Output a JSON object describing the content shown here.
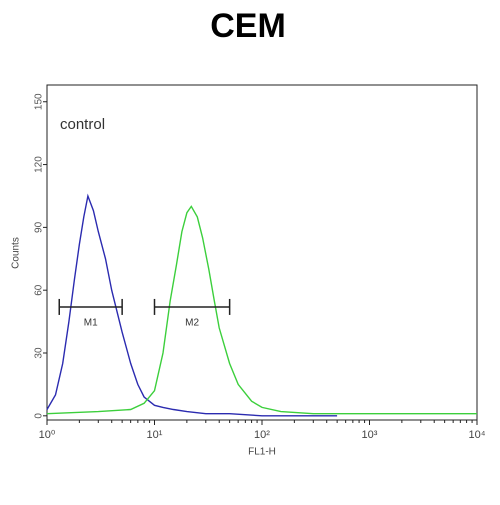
{
  "chart_data": {
    "type": "line",
    "title": "CEM",
    "annotation": "control",
    "x_label": "FL1-H",
    "y_label": "Counts",
    "xscale": "log",
    "xlim": [
      1,
      10000
    ],
    "xticks": [
      {
        "value": 1,
        "label": "10⁰"
      },
      {
        "value": 10,
        "label": "10¹"
      },
      {
        "value": 100,
        "label": "10²"
      },
      {
        "value": 1000,
        "label": "10³"
      },
      {
        "value": 10000,
        "label": "10⁴"
      }
    ],
    "ylim": [
      -2,
      158
    ],
    "yticks": [
      0,
      30,
      60,
      90,
      120,
      150
    ],
    "series": [
      {
        "color": "#2b2bb0",
        "x": [
          1,
          1.2,
          1.4,
          1.6,
          1.8,
          2.0,
          2.2,
          2.4,
          2.7,
          3.0,
          3.5,
          4,
          5,
          6,
          7,
          8,
          10,
          12,
          15,
          20,
          30,
          50,
          100,
          200,
          500
        ],
        "values": [
          3,
          10,
          25,
          45,
          65,
          82,
          95,
          105,
          98,
          88,
          75,
          60,
          40,
          25,
          15,
          9,
          5,
          4,
          3,
          2,
          1,
          1,
          0,
          0,
          0
        ]
      },
      {
        "color": "#3ccf3c",
        "x": [
          1,
          3,
          6,
          8,
          10,
          12,
          14,
          16,
          18,
          20,
          22,
          25,
          28,
          32,
          36,
          40,
          50,
          60,
          80,
          100,
          150,
          300,
          1000,
          10000
        ],
        "values": [
          1,
          2,
          3,
          6,
          12,
          30,
          55,
          72,
          88,
          97,
          100,
          95,
          85,
          70,
          55,
          42,
          25,
          15,
          7,
          4,
          2,
          1,
          1,
          1
        ]
      }
    ],
    "gates": [
      {
        "label": "M1",
        "range": [
          1.3,
          5
        ],
        "level": 52
      },
      {
        "label": "M2",
        "range": [
          10,
          50
        ],
        "level": 52
      }
    ]
  }
}
